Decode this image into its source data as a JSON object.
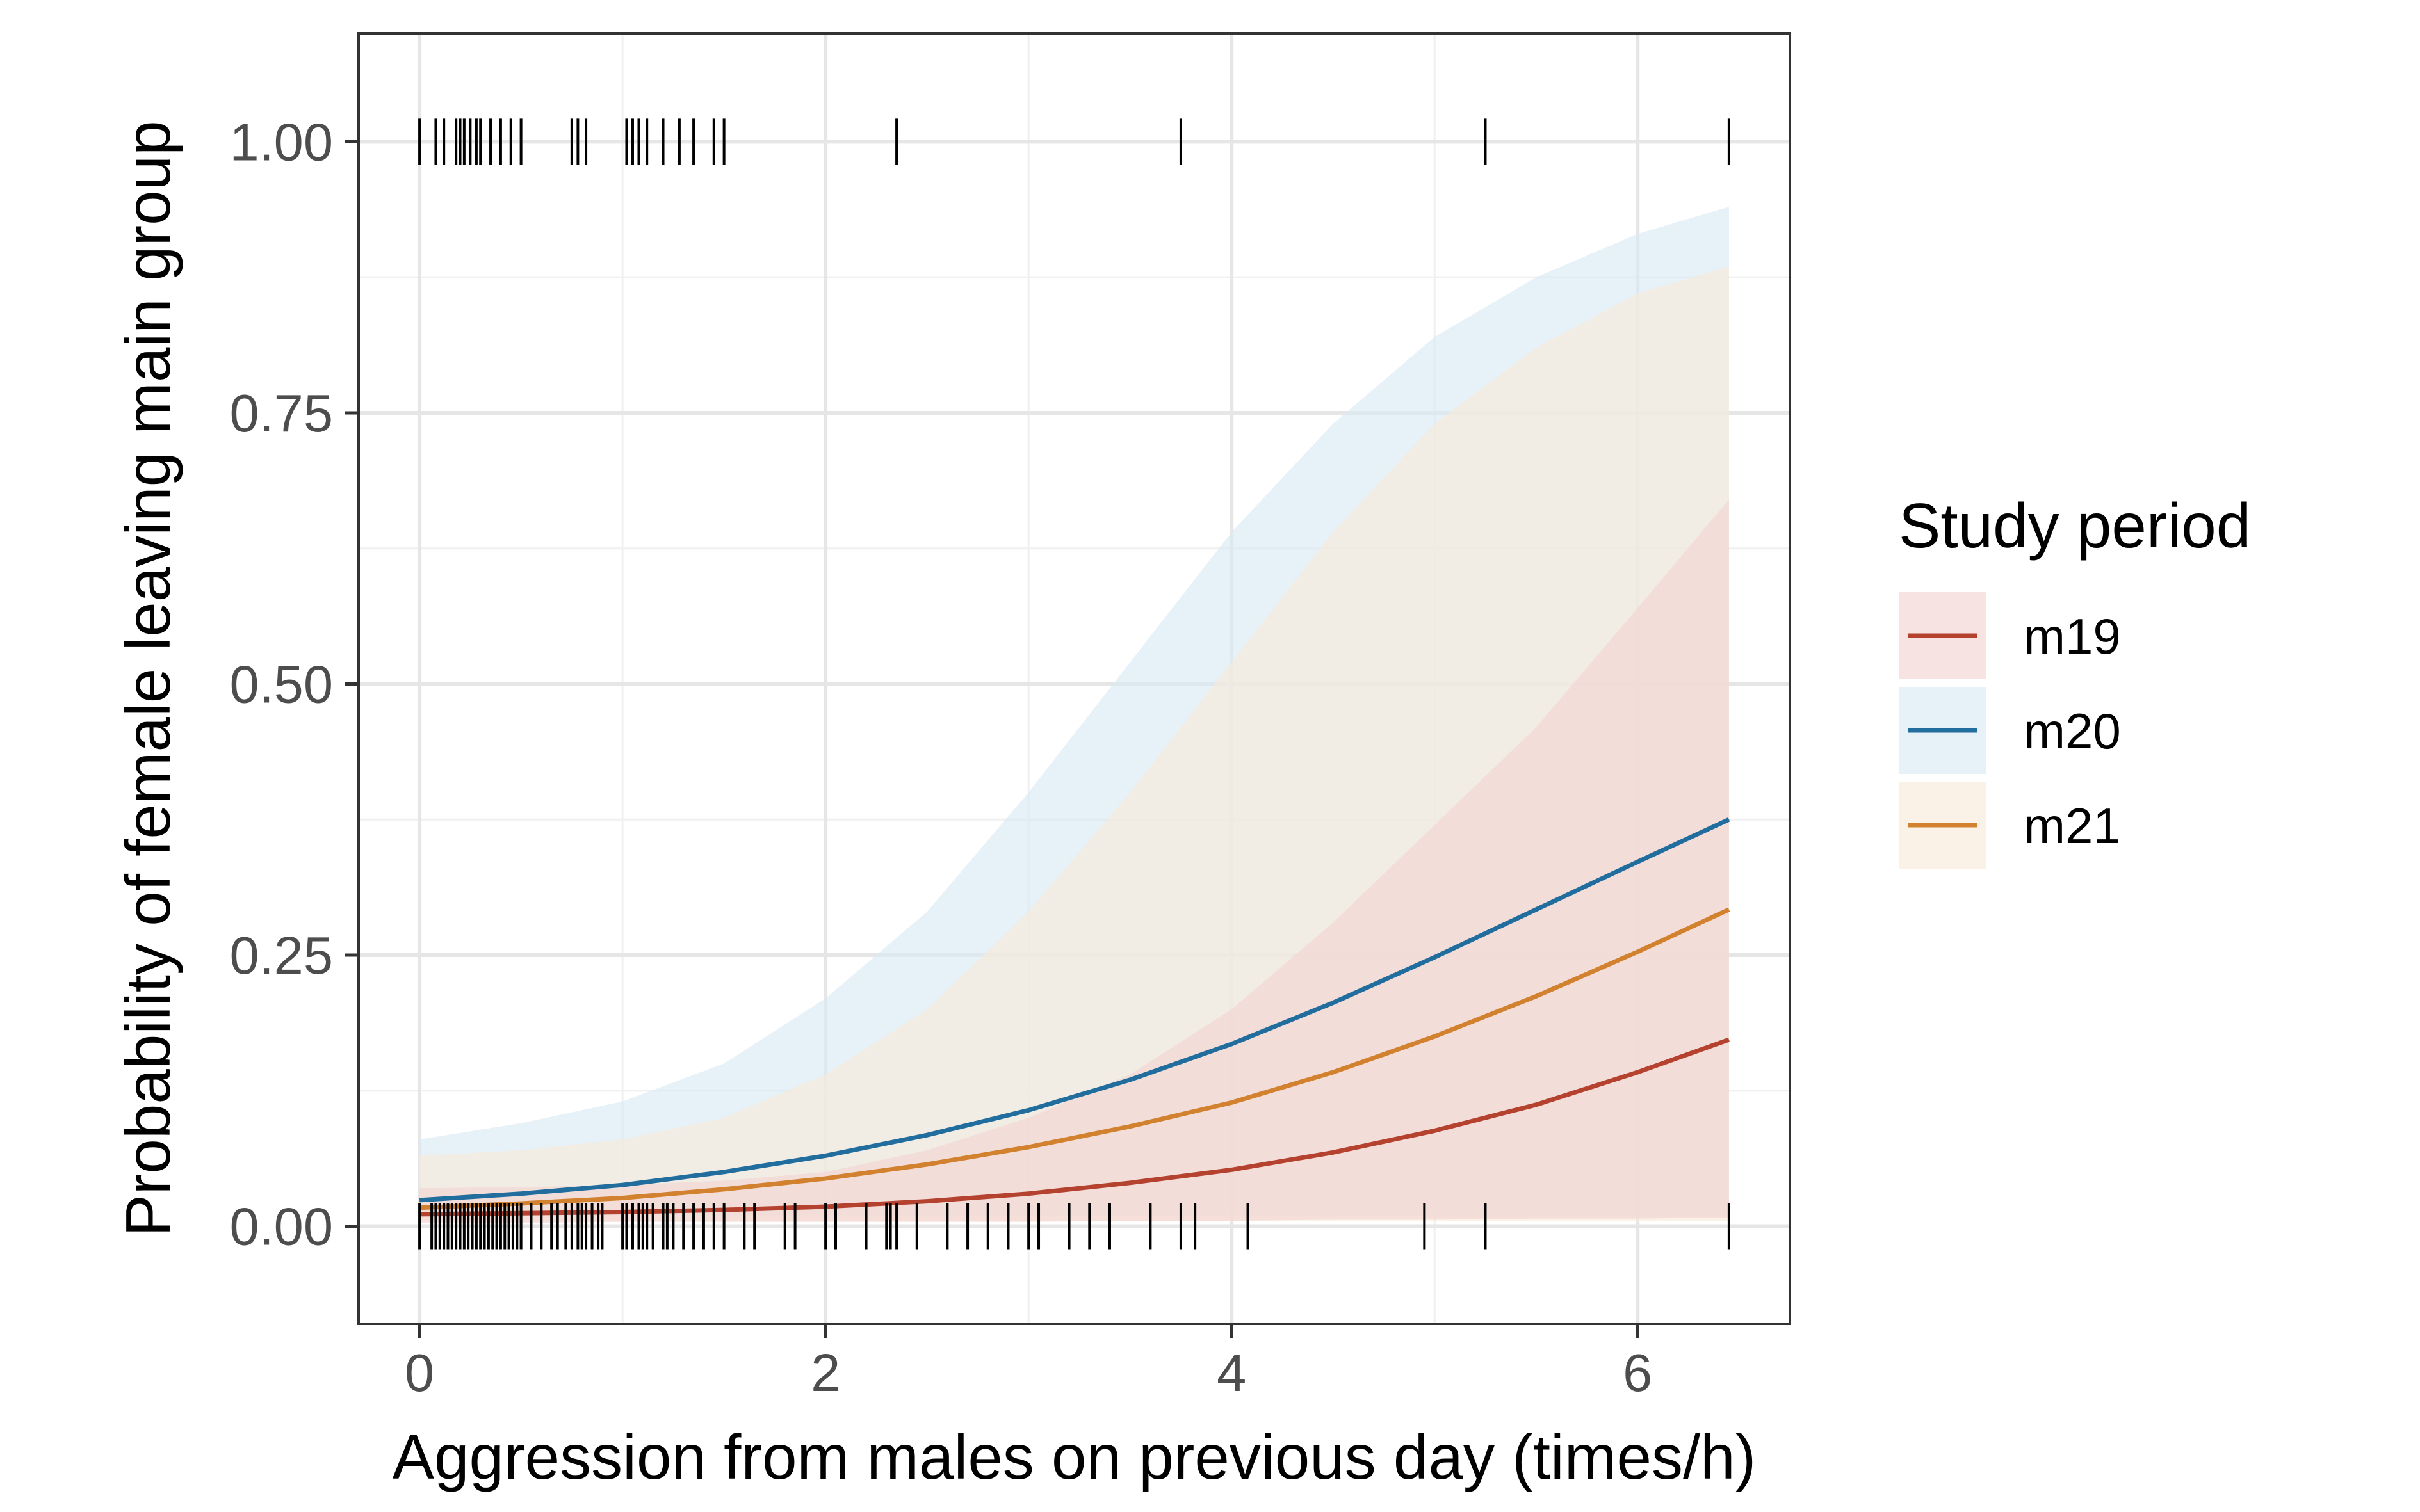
{
  "chart_data": {
    "type": "line",
    "title": "",
    "xlabel": "Aggression from males on previous day (times/h)",
    "ylabel": "Probability of female leaving main group",
    "xlim": [
      -0.3,
      6.75
    ],
    "ylim": [
      -0.09,
      1.1
    ],
    "x_ticks": [
      0,
      2,
      4,
      6
    ],
    "x_tick_labels": [
      "0",
      "2",
      "4",
      "6"
    ],
    "y_ticks": [
      0,
      0.25,
      0.5,
      0.75,
      1.0
    ],
    "y_tick_labels": [
      "0.00",
      "0.25",
      "0.50",
      "0.75",
      "1.00"
    ],
    "grid": true,
    "legend": {
      "title": "Study period",
      "position": "right"
    },
    "series": [
      {
        "name": "m19",
        "color": "#B5412F",
        "ribbon_color": "#F2D4D0",
        "x": [
          0,
          0.5,
          1,
          1.5,
          2,
          2.5,
          3,
          3.5,
          4,
          4.5,
          5,
          5.5,
          6,
          6.45
        ],
        "y": [
          0.011,
          0.012,
          0.013,
          0.015,
          0.018,
          0.023,
          0.03,
          0.04,
          0.052,
          0.068,
          0.088,
          0.112,
          0.142,
          0.172
        ],
        "lower": [
          0.003,
          0.003,
          0.004,
          0.004,
          0.004,
          0.004,
          0.004,
          0.005,
          0.005,
          0.006,
          0.006,
          0.007,
          0.007,
          0.008
        ],
        "upper": [
          0.035,
          0.036,
          0.038,
          0.042,
          0.05,
          0.07,
          0.1,
          0.14,
          0.2,
          0.28,
          0.37,
          0.46,
          0.57,
          0.67
        ]
      },
      {
        "name": "m20",
        "color": "#216D9E",
        "ribbon_color": "#D6E9F4",
        "x": [
          0,
          0.5,
          1,
          1.5,
          2,
          2.5,
          3,
          3.5,
          4,
          4.5,
          5,
          5.5,
          6,
          6.45
        ],
        "y": [
          0.024,
          0.03,
          0.038,
          0.05,
          0.065,
          0.084,
          0.107,
          0.135,
          0.168,
          0.206,
          0.248,
          0.292,
          0.336,
          0.375
        ],
        "lower": [
          0.01,
          0.01,
          0.01,
          0.01,
          0.01,
          0.01,
          0.01,
          0.01,
          0.01,
          0.01,
          0.009,
          0.009,
          0.009,
          0.009
        ],
        "upper": [
          0.08,
          0.095,
          0.115,
          0.15,
          0.21,
          0.29,
          0.4,
          0.52,
          0.64,
          0.74,
          0.82,
          0.875,
          0.915,
          0.94
        ]
      },
      {
        "name": "m21",
        "color": "#D2812F",
        "ribbon_color": "#F8EAD9",
        "x": [
          0,
          0.5,
          1,
          1.5,
          2,
          2.5,
          3,
          3.5,
          4,
          4.5,
          5,
          5.5,
          6,
          6.45
        ],
        "y": [
          0.017,
          0.021,
          0.026,
          0.034,
          0.044,
          0.057,
          0.073,
          0.092,
          0.114,
          0.142,
          0.175,
          0.212,
          0.253,
          0.292
        ],
        "lower": [
          0.005,
          0.005,
          0.005,
          0.005,
          0.005,
          0.005,
          0.005,
          0.005,
          0.005,
          0.005,
          0.005,
          0.005,
          0.005,
          0.005
        ],
        "upper": [
          0.065,
          0.07,
          0.08,
          0.1,
          0.14,
          0.2,
          0.29,
          0.4,
          0.52,
          0.64,
          0.74,
          0.81,
          0.86,
          0.885
        ]
      }
    ],
    "rug_top": {
      "y": 1.0,
      "x": [
        0.0,
        0.08,
        0.12,
        0.18,
        0.2,
        0.22,
        0.25,
        0.28,
        0.3,
        0.35,
        0.4,
        0.45,
        0.5,
        0.75,
        0.78,
        0.82,
        1.02,
        1.05,
        1.08,
        1.12,
        1.2,
        1.28,
        1.35,
        1.45,
        1.5,
        2.35,
        3.75,
        5.25,
        6.45
      ]
    },
    "rug_bottom": {
      "y": 0.0,
      "x": [
        0.0,
        0.06,
        0.08,
        0.1,
        0.12,
        0.14,
        0.16,
        0.18,
        0.2,
        0.22,
        0.24,
        0.26,
        0.28,
        0.3,
        0.32,
        0.34,
        0.36,
        0.38,
        0.4,
        0.42,
        0.44,
        0.46,
        0.48,
        0.5,
        0.55,
        0.6,
        0.65,
        0.68,
        0.72,
        0.75,
        0.78,
        0.8,
        0.82,
        0.85,
        0.88,
        0.9,
        1.0,
        1.02,
        1.05,
        1.08,
        1.1,
        1.12,
        1.15,
        1.2,
        1.22,
        1.25,
        1.3,
        1.35,
        1.4,
        1.45,
        1.5,
        1.6,
        1.65,
        1.8,
        1.85,
        2.0,
        2.05,
        2.2,
        2.3,
        2.32,
        2.35,
        2.45,
        2.6,
        2.7,
        2.8,
        2.9,
        3.0,
        3.05,
        3.2,
        3.3,
        3.4,
        3.6,
        3.75,
        3.82,
        4.08,
        4.95,
        5.25,
        6.45
      ]
    }
  }
}
